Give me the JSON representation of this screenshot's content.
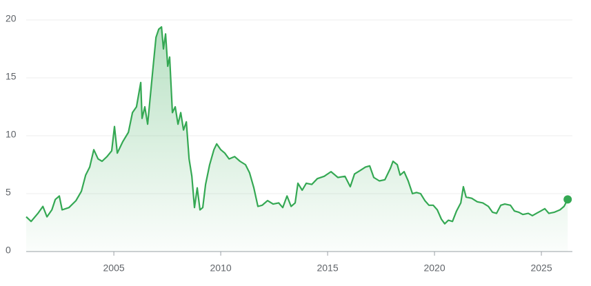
{
  "chart_data": {
    "type": "line",
    "x": [
      2000.9,
      2001.13,
      2001.45,
      2001.68,
      2001.87,
      2002.1,
      2002.26,
      2002.45,
      2002.58,
      2002.9,
      2003.23,
      2003.48,
      2003.68,
      2003.87,
      2004.06,
      2004.26,
      2004.45,
      2004.68,
      2004.9,
      2005.03,
      2005.16,
      2005.42,
      2005.68,
      2005.87,
      2006.06,
      2006.26,
      2006.32,
      2006.45,
      2006.58,
      2006.71,
      2006.84,
      2006.97,
      2007.1,
      2007.23,
      2007.32,
      2007.42,
      2007.52,
      2007.61,
      2007.74,
      2007.87,
      2008.0,
      2008.13,
      2008.26,
      2008.39,
      2008.52,
      2008.65,
      2008.77,
      2008.9,
      2009.03,
      2009.16,
      2009.29,
      2009.48,
      2009.68,
      2009.81,
      2010.0,
      2010.19,
      2010.39,
      2010.65,
      2010.9,
      2011.16,
      2011.35,
      2011.55,
      2011.74,
      2011.94,
      2012.19,
      2012.45,
      2012.71,
      2012.9,
      2013.1,
      2013.29,
      2013.48,
      2013.61,
      2013.81,
      2014.0,
      2014.26,
      2014.52,
      2014.84,
      2015.16,
      2015.48,
      2015.81,
      2016.06,
      2016.26,
      2016.52,
      2016.77,
      2016.97,
      2017.16,
      2017.42,
      2017.68,
      2017.94,
      2018.06,
      2018.26,
      2018.39,
      2018.58,
      2018.77,
      2018.97,
      2019.16,
      2019.35,
      2019.55,
      2019.74,
      2019.94,
      2020.13,
      2020.32,
      2020.48,
      2020.65,
      2020.84,
      2021.03,
      2021.23,
      2021.35,
      2021.48,
      2021.74,
      2022.0,
      2022.26,
      2022.52,
      2022.71,
      2022.9,
      2023.1,
      2023.29,
      2023.55,
      2023.74,
      2023.94,
      2024.13,
      2024.39,
      2024.58,
      2024.77,
      2024.97,
      2025.16,
      2025.35,
      2025.61,
      2025.87,
      2026.06,
      2026.23
    ],
    "series": [
      {
        "color": "#34a853",
        "values": [
          3.0,
          2.6,
          3.3,
          3.9,
          3.0,
          3.6,
          4.5,
          4.8,
          3.6,
          3.8,
          4.4,
          5.2,
          6.6,
          7.3,
          8.8,
          8.0,
          7.8,
          8.2,
          8.7,
          10.8,
          8.5,
          9.5,
          10.3,
          12.0,
          12.5,
          14.6,
          11.5,
          12.5,
          11.0,
          13.5,
          16.0,
          18.5,
          19.2,
          19.4,
          17.5,
          18.8,
          16.0,
          16.8,
          12.0,
          12.5,
          11.0,
          12.0,
          10.5,
          11.2,
          8.0,
          6.5,
          3.8,
          5.5,
          3.6,
          3.8,
          5.8,
          7.5,
          8.8,
          9.3,
          8.8,
          8.5,
          8.0,
          8.2,
          7.8,
          7.5,
          6.8,
          5.5,
          3.9,
          4.0,
          4.4,
          4.1,
          4.2,
          3.8,
          4.8,
          3.9,
          4.2,
          5.9,
          5.3,
          5.9,
          5.8,
          6.3,
          6.5,
          6.9,
          6.4,
          6.5,
          5.6,
          6.7,
          7.0,
          7.3,
          7.4,
          6.4,
          6.1,
          6.2,
          7.2,
          7.8,
          7.5,
          6.6,
          6.9,
          6.1,
          5.0,
          5.1,
          5.0,
          4.4,
          4.0,
          4.0,
          3.6,
          2.8,
          2.4,
          2.7,
          2.6,
          3.5,
          4.2,
          5.6,
          4.7,
          4.6,
          4.3,
          4.2,
          3.9,
          3.4,
          3.3,
          4.0,
          4.1,
          4.0,
          3.5,
          3.4,
          3.2,
          3.3,
          3.1,
          3.3,
          3.5,
          3.7,
          3.3,
          3.4,
          3.6,
          3.9,
          4.5
        ]
      }
    ],
    "xlim": [
      2000.9,
      2026.45
    ],
    "xticks": [
      2005,
      2010,
      2015,
      2020,
      2025
    ],
    "ylim": [
      0,
      20
    ],
    "yticks": [
      0,
      5,
      10,
      15,
      20
    ],
    "grid": true
  }
}
